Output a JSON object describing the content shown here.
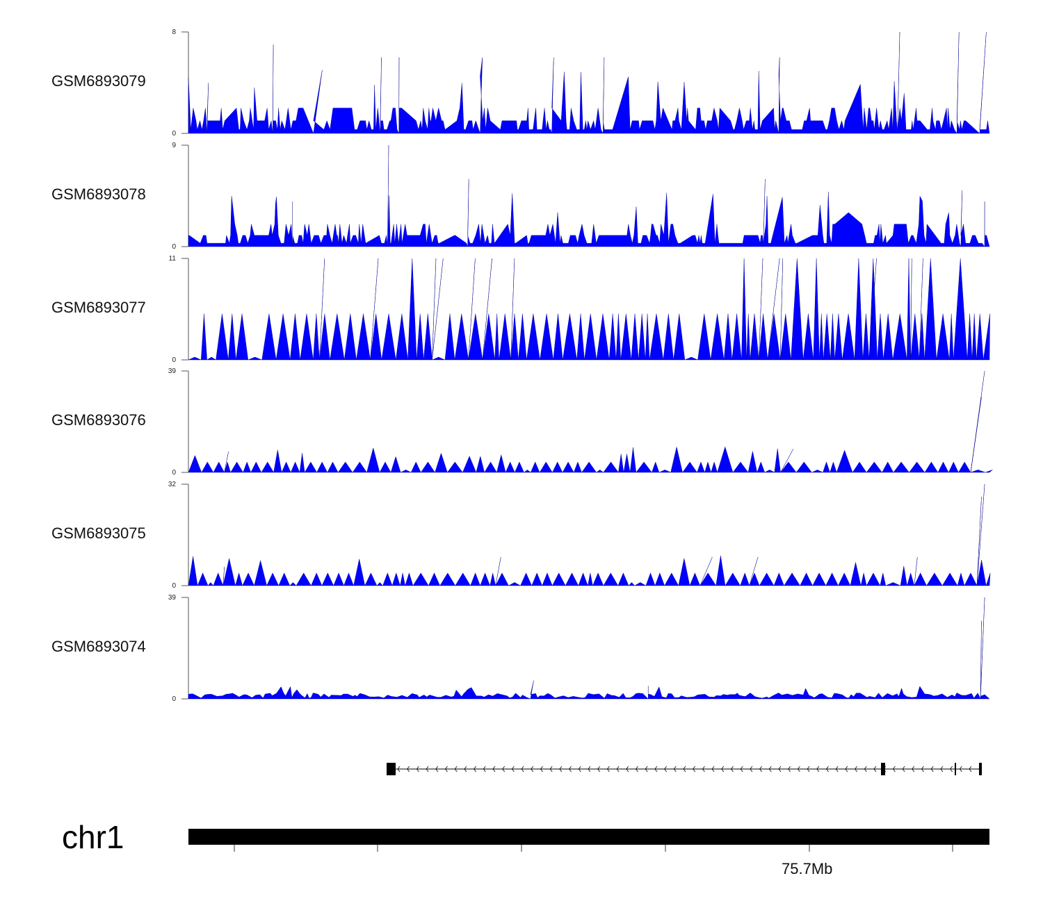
{
  "chart_data": {
    "type": "area",
    "title": "",
    "xlabel": "chr1",
    "x_tick_label": "75.7Mb",
    "x_bins": 1000,
    "color": "#0000FF",
    "series": [
      {
        "name": "GSM6893079",
        "ylim": [
          0,
          8
        ],
        "style": "dense",
        "peaks": [
          [
            25,
            4
          ],
          [
            106,
            7
          ],
          [
            167,
            5
          ],
          [
            241,
            6
          ],
          [
            263,
            6
          ],
          [
            367,
            6
          ],
          [
            456,
            6
          ],
          [
            519,
            6
          ],
          [
            738,
            6
          ],
          [
            888,
            8
          ],
          [
            962,
            8
          ],
          [
            996,
            8
          ]
        ]
      },
      {
        "name": "GSM6893078",
        "ylim": [
          0,
          9
        ],
        "style": "dense",
        "peaks": [
          [
            130,
            4
          ],
          [
            250,
            9
          ],
          [
            350,
            6
          ],
          [
            720,
            6
          ],
          [
            966,
            5
          ],
          [
            994,
            4
          ]
        ]
      },
      {
        "name": "GSM6893077",
        "ylim": [
          0,
          11
        ],
        "style": "sparse",
        "peaks": [
          [
            170,
            11
          ],
          [
            237,
            11
          ],
          [
            309,
            11
          ],
          [
            318,
            11
          ],
          [
            358,
            11
          ],
          [
            379,
            11
          ],
          [
            407,
            11
          ],
          [
            717,
            11
          ],
          [
            738,
            11
          ],
          [
            742,
            11
          ],
          [
            859,
            11
          ],
          [
            903,
            11
          ],
          [
            917,
            11
          ]
        ]
      },
      {
        "name": "GSM6893076",
        "ylim": [
          0,
          39
        ],
        "style": "low",
        "peaks": [
          [
            50,
            8
          ],
          [
            755,
            9
          ],
          [
            990,
            29
          ],
          [
            994,
            39
          ]
        ]
      },
      {
        "name": "GSM6893075",
        "ylim": [
          0,
          32
        ],
        "style": "low",
        "peaks": [
          [
            45,
            6
          ],
          [
            390,
            9
          ],
          [
            654,
            9
          ],
          [
            711,
            9
          ],
          [
            910,
            9
          ],
          [
            990,
            28
          ],
          [
            994,
            32
          ]
        ]
      },
      {
        "name": "GSM6893074",
        "ylim": [
          0,
          39
        ],
        "style": "tiny",
        "peaks": [
          [
            431,
            7
          ],
          [
            574,
            5
          ],
          [
            990,
            30
          ],
          [
            994,
            39
          ]
        ]
      }
    ],
    "gene_model": {
      "strand": "-",
      "exons": "4"
    }
  }
}
